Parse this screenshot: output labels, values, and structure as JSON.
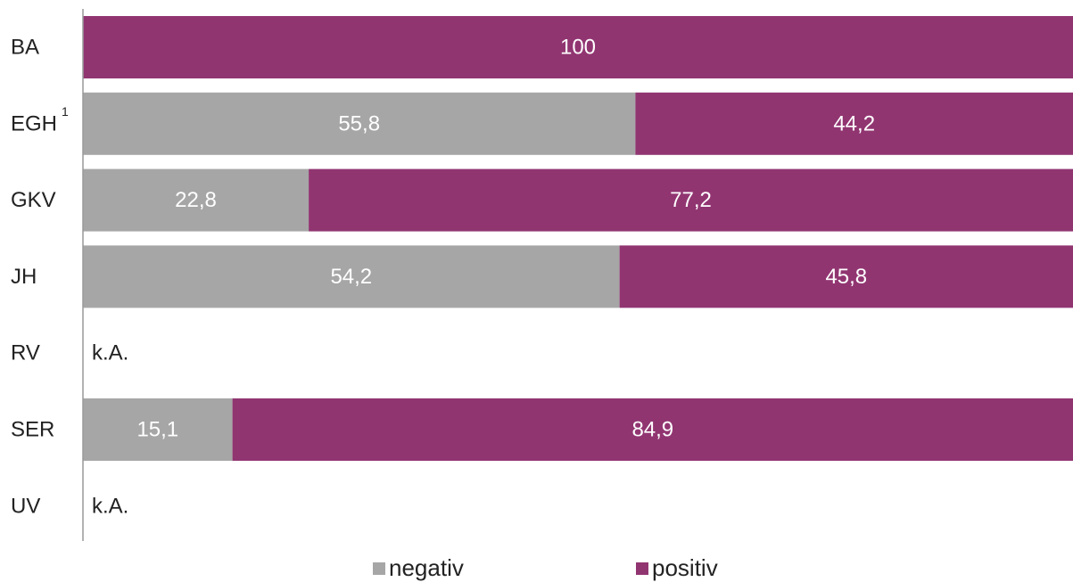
{
  "chart_data": {
    "type": "bar",
    "orientation": "horizontal",
    "stacked": true,
    "title": "",
    "xlabel": "",
    "ylabel": "",
    "xlim": [
      0,
      100
    ],
    "grid": false,
    "legend_position": "bottom",
    "categories": [
      {
        "label": "BA",
        "sup": ""
      },
      {
        "label": "EGH",
        "sup": "1"
      },
      {
        "label": "GKV",
        "sup": ""
      },
      {
        "label": "JH",
        "sup": ""
      },
      {
        "label": "RV",
        "sup": ""
      },
      {
        "label": "SER",
        "sup": ""
      },
      {
        "label": "UV",
        "sup": ""
      }
    ],
    "series": [
      {
        "name": "negativ",
        "color": "#a6a6a6",
        "values": [
          null,
          55.8,
          22.8,
          54.2,
          null,
          15.1,
          null
        ],
        "labels": [
          "",
          "55,8",
          "22,8",
          "54,2",
          "",
          "15,1",
          ""
        ]
      },
      {
        "name": "positiv",
        "color": "#913571",
        "values": [
          100,
          44.2,
          77.2,
          45.8,
          null,
          84.9,
          null
        ],
        "labels": [
          "100",
          "44,2",
          "77,2",
          "45,8",
          "",
          "84,9",
          ""
        ]
      }
    ],
    "no_data_label": "k.A.",
    "no_data_categories": [
      "RV",
      "UV"
    ]
  }
}
